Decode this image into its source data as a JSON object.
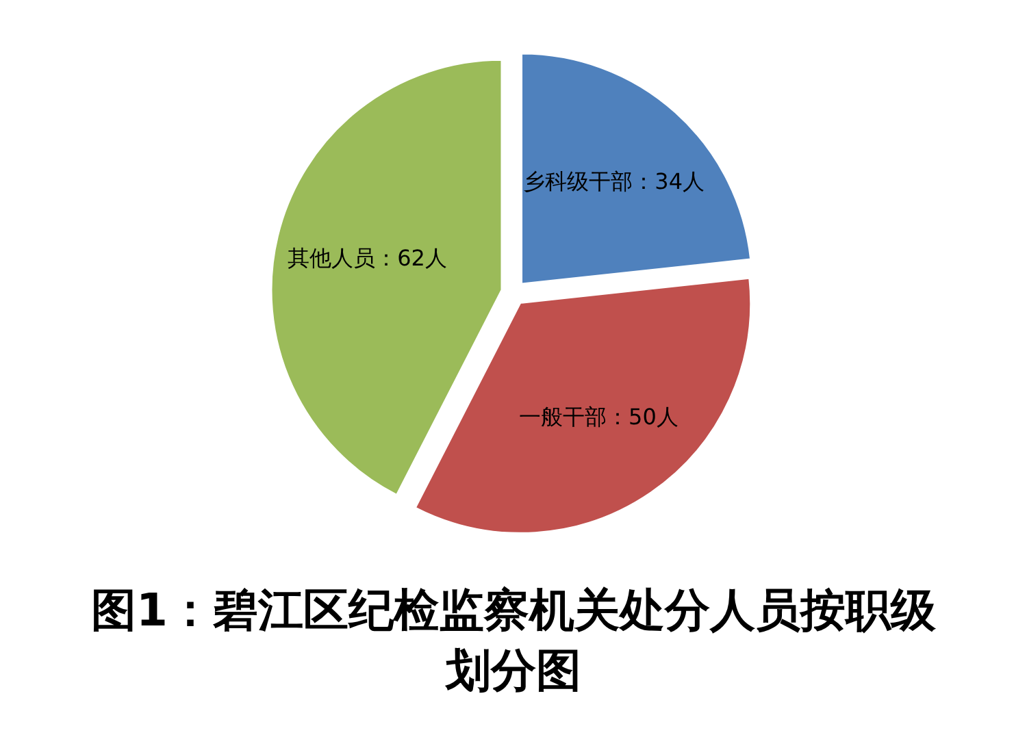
{
  "chart_data": {
    "type": "pie",
    "title": "图1：碧江区纪检监察机关处分人员按职级划分图",
    "categories": [
      "乡科级干部：34人",
      "一般干部：50人",
      "其他人员：62人"
    ],
    "values": [
      34,
      50,
      62
    ],
    "colors": [
      "#4f81bd",
      "#c0504d",
      "#9bbb59"
    ]
  }
}
